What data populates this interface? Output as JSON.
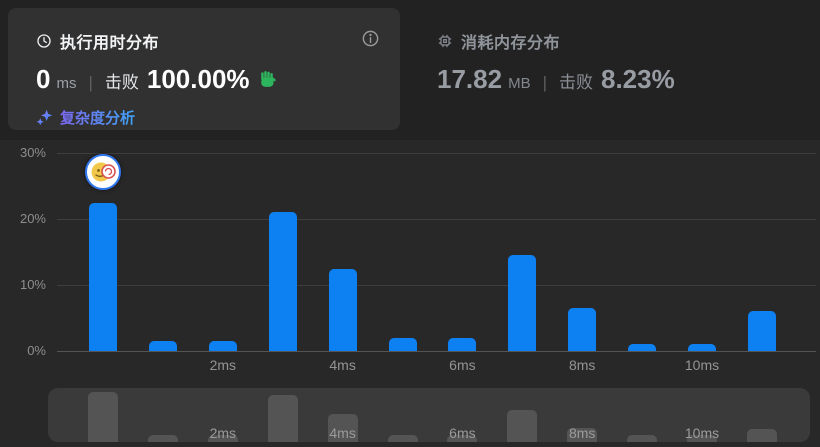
{
  "runtime_panel": {
    "title": "执行用时分布",
    "value": "0",
    "unit": "ms",
    "divider": "|",
    "beats_label": "击败",
    "beats_value": "100.00%",
    "analysis_link": "复杂度分析"
  },
  "memory_panel": {
    "title": "消耗内存分布",
    "value": "17.82",
    "unit": "MB",
    "divider": "|",
    "beats_label": "击败",
    "beats_value": "8.23%"
  },
  "colors": {
    "bar_blue": "#0d80f2",
    "mini_bar_gray": "#545454",
    "celebration_green": "#2db55d",
    "link_gradient_start": "#7c6af2",
    "link_gradient_end": "#3fa2f5",
    "card_background": "#313131",
    "page_background": "#282828"
  },
  "icons": {
    "runtime": "clock-icon",
    "info": "info-icon",
    "memory": "chip-icon",
    "analysis": "sparkles-icon",
    "celebration": "waving-hand-icon",
    "marker": "user-avatar"
  },
  "chart_data": {
    "type": "bar",
    "title": "执行用时分布",
    "categories": [
      "0ms",
      "1ms",
      "2ms",
      "3ms",
      "4ms",
      "5ms",
      "6ms",
      "7ms",
      "8ms",
      "9ms",
      "10ms",
      "11ms"
    ],
    "values": [
      22.5,
      1.5,
      1.5,
      21,
      12.5,
      2,
      2,
      14.5,
      6.5,
      1,
      1,
      6
    ],
    "value_unit": "%",
    "x_tick_labels": [
      "2ms",
      "4ms",
      "6ms",
      "8ms",
      "10ms"
    ],
    "y_tick_labels": [
      "0%",
      "10%",
      "20%",
      "30%"
    ],
    "ylim": [
      0,
      30
    ],
    "grid": true,
    "legend": "none",
    "marker_category": "0ms"
  },
  "minimap": {
    "type": "bar",
    "x_tick_labels": [
      "2ms",
      "4ms",
      "6ms",
      "8ms",
      "10ms"
    ],
    "selection": "full-range"
  }
}
